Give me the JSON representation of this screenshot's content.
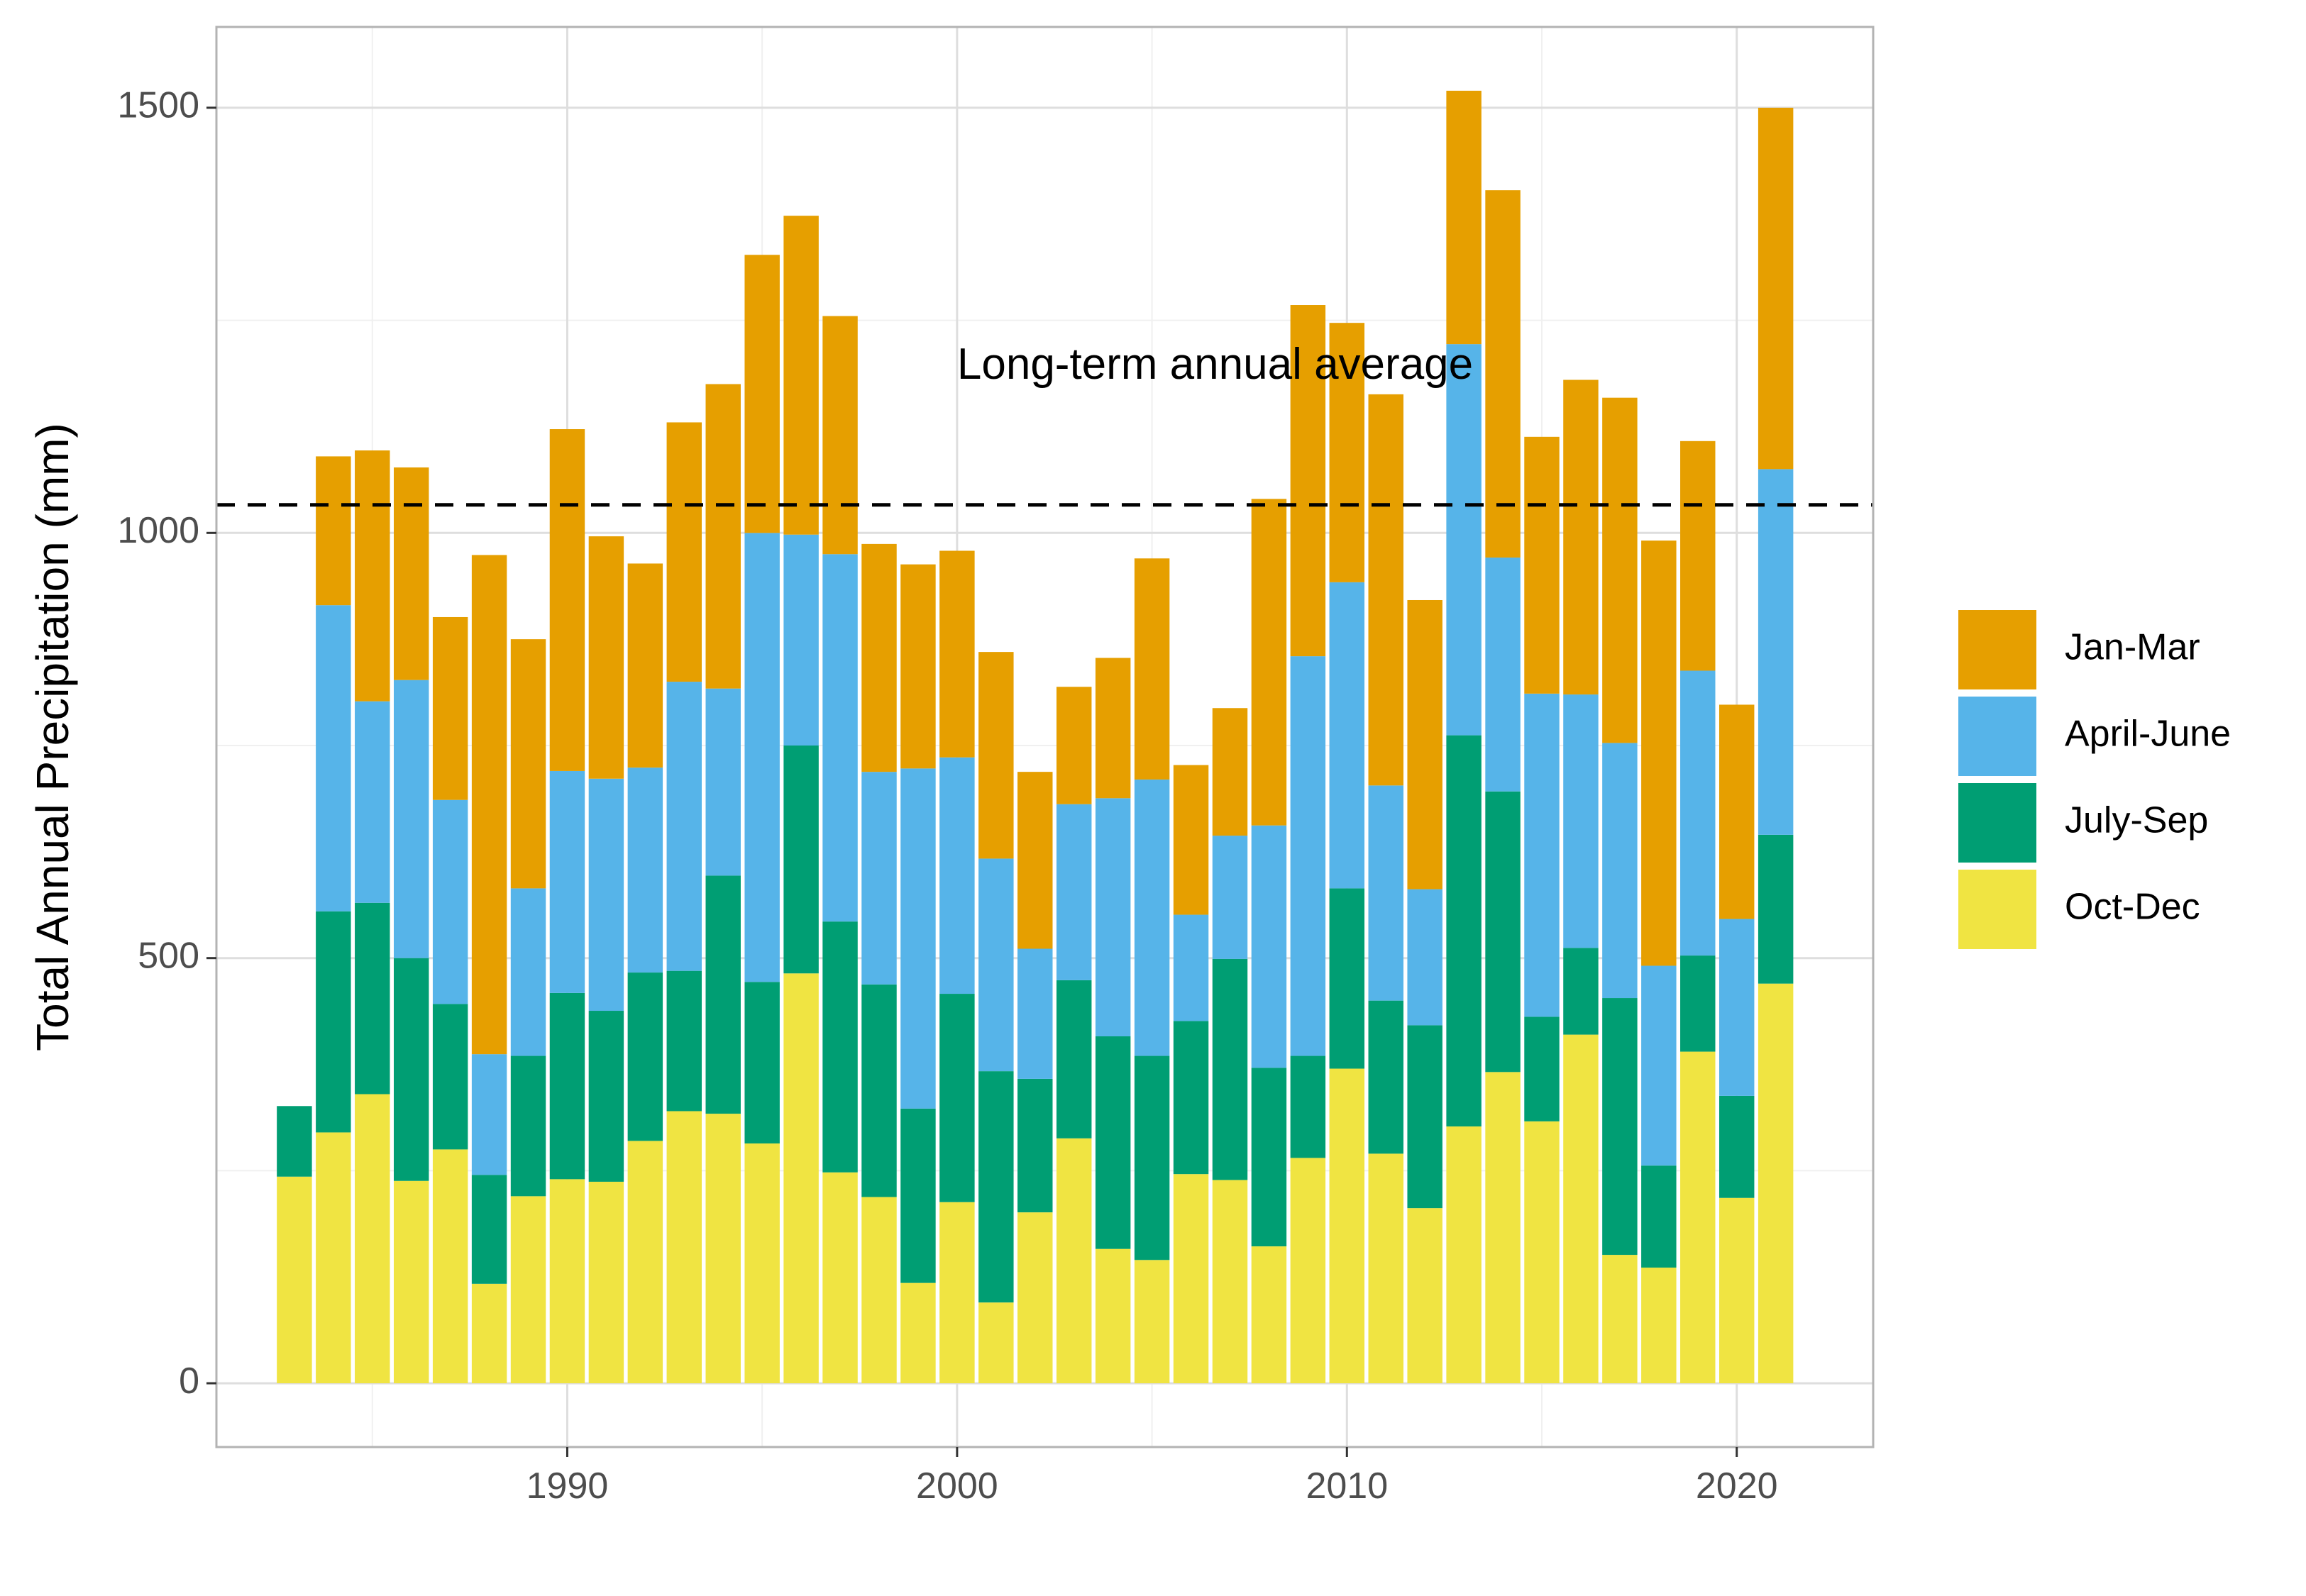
{
  "chart_data": {
    "type": "bar",
    "stacked": true,
    "ylabel": "Total Annual Precipitation (mm)",
    "xlabel": "",
    "xlim": [
      1981,
      2023.5
    ],
    "ylim": [
      -75,
      1595
    ],
    "x_ticks": [
      1990,
      2000,
      2010,
      2020
    ],
    "y_ticks": [
      0,
      500,
      1000,
      1500
    ],
    "grid": true,
    "legend_position": "right",
    "categories": [
      1983,
      1984,
      1985,
      1986,
      1987,
      1988,
      1989,
      1990,
      1991,
      1992,
      1993,
      1994,
      1995,
      1996,
      1997,
      1998,
      1999,
      2000,
      2001,
      2002,
      2003,
      2004,
      2005,
      2006,
      2007,
      2008,
      2009,
      2010,
      2011,
      2012,
      2013,
      2014,
      2015,
      2016,
      2017,
      2018,
      2019,
      2020,
      2021
    ],
    "series": [
      {
        "name": "Oct-Dec",
        "color": "#F0E442",
        "values": [
          243,
          295,
          340,
          238,
          275,
          117,
          220,
          240,
          237,
          285,
          320,
          317,
          282,
          482,
          248,
          219,
          118,
          213,
          95,
          201,
          288,
          158,
          145,
          246,
          239,
          161,
          265,
          370,
          270,
          206,
          302,
          366,
          308,
          410,
          151,
          136,
          390,
          218,
          470
        ]
      },
      {
        "name": "July-Sep",
        "color": "#009E73",
        "values": [
          83,
          260,
          225,
          262,
          171,
          128,
          165,
          219,
          201,
          198,
          165,
          280,
          190,
          268,
          295,
          250,
          205,
          245,
          272,
          157,
          186,
          250,
          240,
          180,
          260,
          210,
          120,
          212,
          180,
          215,
          460,
          330,
          123,
          102,
          302,
          120,
          113,
          120,
          175
        ]
      },
      {
        "name": "April-June",
        "color": "#56B4E9",
        "values": [
          0,
          360,
          237,
          327,
          240,
          142,
          197,
          261,
          273,
          241,
          340,
          220,
          528,
          248,
          432,
          250,
          400,
          278,
          250,
          153,
          207,
          280,
          325,
          125,
          145,
          285,
          470,
          360,
          253,
          160,
          460,
          275,
          380,
          298,
          300,
          235,
          335,
          208,
          430
        ]
      },
      {
        "name": "Jan-Mar",
        "color": "#E69F00",
        "values": [
          0,
          175,
          295,
          250,
          215,
          587,
          293,
          402,
          285,
          240,
          305,
          358,
          327,
          375,
          280,
          268,
          240,
          243,
          243,
          208,
          138,
          165,
          260,
          176,
          150,
          384,
          413,
          305,
          460,
          340,
          298,
          432,
          302,
          370,
          406,
          500,
          270,
          252,
          425
        ]
      }
    ],
    "legend_order": [
      "Jan-Mar",
      "April-June",
      "July-Sep",
      "Oct-Dec"
    ],
    "reference_line": {
      "value": 1033,
      "style": "dashed",
      "label": "Long-term annual average",
      "label_x": 2000,
      "label_y": 1195
    }
  }
}
